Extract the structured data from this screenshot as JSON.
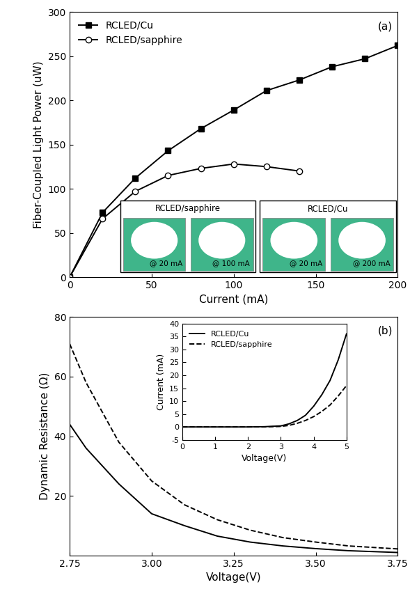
{
  "chart_data": [
    {
      "type": "line",
      "x_label": "Current (mA)",
      "y_label": "Fiber-Coupled Light Power (uW)",
      "annotations": [
        "(a)"
      ],
      "x": [
        0,
        20,
        40,
        60,
        80,
        100,
        120,
        140,
        160,
        180,
        200
      ],
      "series": [
        {
          "name": "RCLED/Cu",
          "color": "#000000",
          "marker": "square",
          "line_style": "solid",
          "values": [
            0,
            73,
            112,
            143,
            168,
            189,
            211,
            223,
            238,
            247,
            262
          ]
        },
        {
          "name": "RCLED/sapphire",
          "color": "#000000",
          "marker": "open_circle",
          "line_style": "solid",
          "values": [
            0,
            66,
            97,
            115,
            123,
            128,
            125,
            120,
            null,
            null,
            null
          ]
        }
      ],
      "xlim": [
        0,
        200
      ],
      "xticks": [
        0,
        50,
        100,
        150,
        200
      ],
      "ylim": [
        0,
        300
      ],
      "yticks": [
        0,
        50,
        100,
        150,
        200,
        250,
        300
      ],
      "legend": "upper left",
      "image_panels": [
        {
          "title": "RCLED/sapphire",
          "captions": [
            "@ 20 mA",
            "@ 100 mA"
          ]
        },
        {
          "title": "RCLED/Cu",
          "captions": [
            "@ 20 mA",
            "@ 200 mA"
          ]
        }
      ]
    },
    {
      "type": "line",
      "x_label": "Voltage(V)",
      "y_label": "Dynamic Resistance (Ω)",
      "annotations": [
        "(b)"
      ],
      "x": [
        2.75,
        2.8,
        2.85,
        2.9,
        3.0,
        3.1,
        3.2,
        3.3,
        3.4,
        3.5,
        3.6,
        3.75
      ],
      "series": [
        {
          "color": "#000000",
          "line_style": "solid",
          "values": [
            44,
            36,
            30,
            24,
            14,
            10,
            6.5,
            4.5,
            3.2,
            2.3,
            1.6,
            1.0
          ]
        },
        {
          "color": "#000000",
          "line_style": "dashed",
          "values": [
            71,
            58,
            48,
            38,
            25,
            17,
            12,
            8.5,
            6,
            4.5,
            3.2,
            2.2
          ]
        }
      ],
      "xlim": [
        2.75,
        3.75
      ],
      "xticks": [
        2.75,
        {
          "value": 3.0,
          "label": "3.00"
        },
        3.25,
        {
          "value": 3.5,
          "label": "3.50"
        },
        3.75
      ],
      "ylim": [
        0,
        80
      ],
      "yticks": [
        20,
        40,
        60,
        80
      ]
    },
    {
      "type": "line",
      "x_label": "Voltage(V)",
      "y_label": "Current (mA)",
      "x": [
        0,
        1,
        2,
        2.5,
        3,
        3.25,
        3.5,
        3.75,
        4,
        4.25,
        4.5,
        4.75,
        5
      ],
      "series": [
        {
          "name": "RCLED/Cu",
          "color": "#000000",
          "line_style": "solid",
          "values": [
            0,
            0,
            0,
            0.1,
            0.4,
            1.2,
            2.5,
            4.5,
            8,
            12.5,
            18,
            26,
            36
          ]
        },
        {
          "name": "RCLED/sapphire",
          "color": "#000000",
          "line_style": "dashed",
          "values": [
            0,
            0,
            0,
            0,
            0.2,
            0.6,
            1.4,
            2.5,
            4,
            6,
            8.5,
            12,
            16
          ]
        }
      ],
      "xlim": [
        0,
        5
      ],
      "xticks": [
        0,
        1,
        2,
        3,
        4,
        5
      ],
      "ylim": [
        -5,
        40
      ],
      "yticks": [
        -5,
        0,
        5,
        10,
        15,
        20,
        25,
        30,
        35,
        40
      ],
      "legend": "upper left"
    }
  ]
}
